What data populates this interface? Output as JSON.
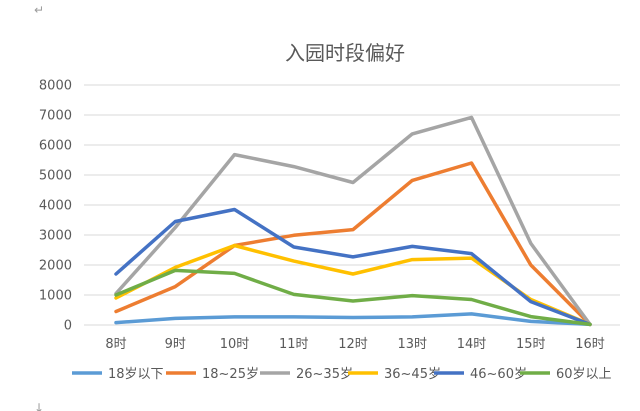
{
  "page": {
    "top_mark": "↵",
    "bottom_mark": "↓"
  },
  "chart_data": {
    "type": "line",
    "title": "入园时段偏好",
    "categories": [
      "8时",
      "9时",
      "10时",
      "11时",
      "12时",
      "13时",
      "14时",
      "15时",
      "16时"
    ],
    "ylim": [
      0,
      8000
    ],
    "yticks": [
      0,
      1000,
      2000,
      3000,
      4000,
      5000,
      6000,
      7000,
      8000
    ],
    "yticks_labels": [
      "0",
      "1000",
      "2000",
      "3000",
      "4000",
      "5000",
      "6000",
      "7000",
      "8000"
    ],
    "grid": true,
    "legend_position": "bottom",
    "series": [
      {
        "name": "18岁以下",
        "color": "#5b9bd5",
        "values": [
          80,
          220,
          270,
          270,
          250,
          270,
          370,
          120,
          20
        ]
      },
      {
        "name": "18~25岁",
        "color": "#ed7d31",
        "values": [
          450,
          1280,
          2650,
          2990,
          3180,
          4820,
          5400,
          2000,
          20
        ]
      },
      {
        "name": "26~35岁",
        "color": "#a5a5a5",
        "values": [
          1050,
          3250,
          5680,
          5280,
          4750,
          6370,
          6920,
          2720,
          20
        ]
      },
      {
        "name": "36~45岁",
        "color": "#ffc000",
        "values": [
          900,
          1920,
          2650,
          2130,
          1700,
          2180,
          2230,
          850,
          20
        ]
      },
      {
        "name": "46~60岁",
        "color": "#4472c4",
        "values": [
          1700,
          3450,
          3850,
          2600,
          2270,
          2620,
          2380,
          780,
          20
        ]
      },
      {
        "name": "60岁以上",
        "color": "#70ad47",
        "values": [
          1000,
          1820,
          1720,
          1020,
          800,
          980,
          850,
          280,
          20
        ]
      }
    ]
  }
}
